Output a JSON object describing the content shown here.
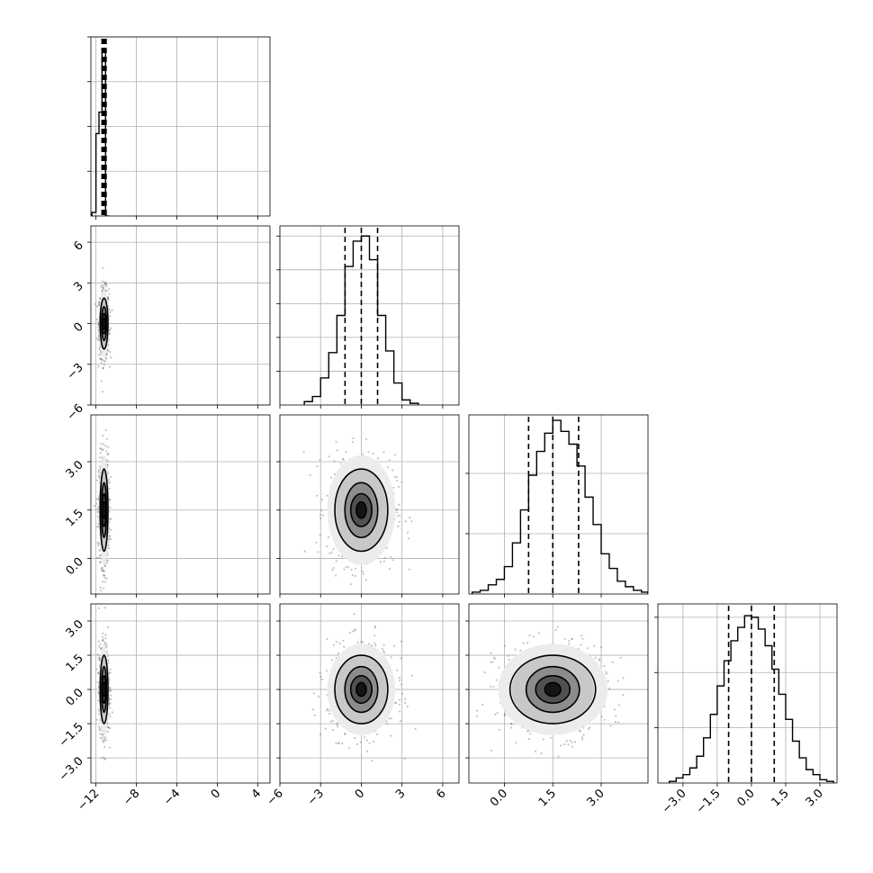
{
  "chart_data": {
    "type": "corner",
    "grid": true,
    "variables": [
      {
        "range": [
          -12.5,
          5.2
        ],
        "ticks": [
          -12,
          -8,
          -4,
          0,
          4
        ],
        "tick_labels": [
          "−12",
          "−8",
          "−4",
          "0",
          "4"
        ],
        "quantiles": [
          -11.25,
          -11.2,
          -11.15
        ],
        "center": -11.2,
        "spread": 0.25,
        "hist": {
          "edges": [
            -12.4,
            -12.0,
            -11.7,
            -11.4,
            -11.05,
            -10.7
          ],
          "counts": [
            0.02,
            0.46,
            0.58,
            0.93,
            0.0
          ]
        },
        "hist_ymax": 1.0,
        "hist_yticks": [
          0.25,
          0.5,
          0.75,
          1.0
        ]
      },
      {
        "range": [
          -6,
          7.2
        ],
        "ticks": [
          -6,
          -3,
          0,
          3,
          6
        ],
        "tick_labels": [
          "−6",
          "−3",
          "0",
          "3",
          "6"
        ],
        "quantiles": [
          -1.2,
          0.0,
          1.2
        ],
        "center": 0.0,
        "spread": 1.25,
        "hist": {
          "edges": [
            -4.2,
            -3.6,
            -3.0,
            -2.4,
            -1.8,
            -1.2,
            -0.6,
            0.0,
            0.6,
            1.2,
            1.8,
            2.4,
            3.0,
            3.6,
            4.2
          ],
          "counts": [
            0.02,
            0.05,
            0.16,
            0.31,
            0.53,
            0.82,
            0.97,
            1.0,
            0.86,
            0.53,
            0.32,
            0.13,
            0.03,
            0.01
          ]
        },
        "hist_ymax": 1.06,
        "hist_yticks": [
          0.2,
          0.4,
          0.6,
          0.8,
          1.0
        ]
      },
      {
        "range": [
          -1.1,
          4.45
        ],
        "ticks": [
          0.0,
          1.5,
          3.0
        ],
        "tick_labels": [
          "0.0",
          "1.5",
          "3.0"
        ],
        "quantiles": [
          0.75,
          1.5,
          2.3
        ],
        "center": 1.5,
        "spread": 0.85,
        "hist": {
          "edges": [
            -1.0,
            -0.75,
            -0.5,
            -0.25,
            0.0,
            0.25,
            0.5,
            0.75,
            1.0,
            1.25,
            1.5,
            1.75,
            2.0,
            2.25,
            2.5,
            2.75,
            3.0,
            3.25,
            3.5,
            3.75,
            4.0,
            4.25,
            4.45
          ],
          "counts": [
            0.01,
            0.02,
            0.05,
            0.08,
            0.15,
            0.28,
            0.46,
            0.65,
            0.78,
            0.88,
            0.95,
            0.89,
            0.82,
            0.7,
            0.53,
            0.38,
            0.22,
            0.14,
            0.07,
            0.04,
            0.02,
            0.01
          ]
        },
        "hist_ymax": 0.98,
        "hist_yticks": [
          0.33,
          0.66
        ]
      },
      {
        "range": [
          -4.1,
          3.75
        ],
        "ticks": [
          -3.0,
          -1.5,
          0.0,
          1.5,
          3.0
        ],
        "tick_labels": [
          "−3.0",
          "−1.5",
          "0.0",
          "1.5",
          "3.0"
        ],
        "quantiles": [
          -1.0,
          0.0,
          1.0
        ],
        "center": 0.0,
        "spread": 1.0,
        "hist": {
          "edges": [
            -3.6,
            -3.3,
            -3.0,
            -2.7,
            -2.4,
            -2.1,
            -1.8,
            -1.5,
            -1.2,
            -0.9,
            -0.6,
            -0.3,
            0.0,
            0.3,
            0.6,
            0.9,
            1.2,
            1.5,
            1.8,
            2.1,
            2.4,
            2.7,
            3.0,
            3.3,
            3.6
          ],
          "counts": [
            0.01,
            0.03,
            0.05,
            0.09,
            0.16,
            0.27,
            0.41,
            0.58,
            0.73,
            0.85,
            0.93,
            1.0,
            0.99,
            0.92,
            0.82,
            0.68,
            0.53,
            0.38,
            0.25,
            0.15,
            0.08,
            0.05,
            0.02,
            0.01
          ]
        },
        "hist_ymax": 1.07,
        "hist_yticks": [
          0.33,
          0.66,
          0.99
        ]
      }
    ],
    "contour_levels": [
      0.3,
      0.6,
      1.0,
      1.5
    ],
    "scatter_points_per_panel": 650
  }
}
